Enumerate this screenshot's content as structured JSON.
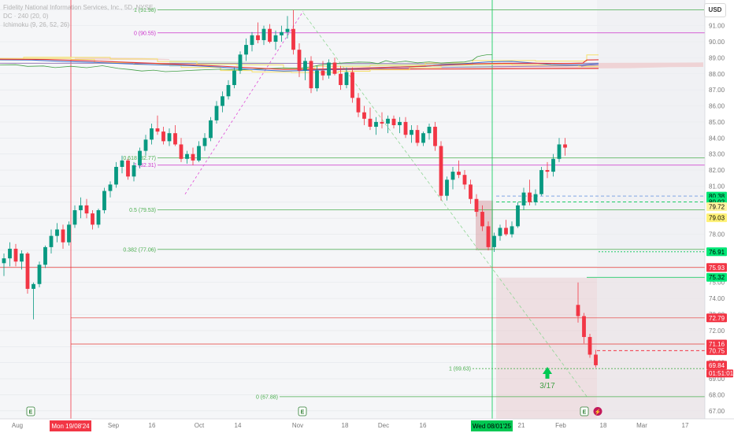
{
  "legend": {
    "symbol": "Fidelity National Information Services, Inc., 5D, NYSE",
    "dc": "DC · 240 (20, 0)",
    "ichimoku": "Ichimoku (9, 26, 52, 26)"
  },
  "currency_button": "USD",
  "colors": {
    "up": "#089981",
    "down": "#f23645",
    "fib_green": "#4caf50",
    "fib_magenta": "#cc33cc",
    "red_line": "#e53935",
    "purple_line": "#9c7fb8",
    "blue_line": "#3d6fd1",
    "yellow_line": "#f5e06b",
    "green_cloud": "#a5d6a7",
    "red_cloud": "#ef9a9a",
    "chikou": "#43a047"
  },
  "chart_data": {
    "type": "candlestick",
    "y_axis": {
      "range": [
        66.5,
        92.6
      ],
      "ticks": [
        "92.00",
        "91.00",
        "90.00",
        "89.00",
        "88.00",
        "87.00",
        "86.00",
        "85.00",
        "84.00",
        "83.00",
        "82.00",
        "81.00",
        "80.00",
        "79.00",
        "78.00",
        "77.00",
        "76.00",
        "75.00",
        "74.00",
        "73.00",
        "72.00",
        "71.00",
        "70.00",
        "69.00",
        "68.00",
        "67.00"
      ]
    },
    "x_axis": {
      "ticks": [
        "Aug",
        "Sep",
        "16",
        "Oct",
        "14",
        "Nov",
        "18",
        "Dec",
        "16",
        "21",
        "Feb",
        "18",
        "Mar",
        "17"
      ],
      "highlighted": [
        "Mon 19/08'24",
        "Wed 08/01'25"
      ]
    },
    "candles": [
      [
        76.2,
        76.8,
        75.4,
        76.5
      ],
      [
        76.5,
        77.5,
        76.0,
        77.1
      ],
      [
        77.1,
        77.4,
        76.0,
        76.3
      ],
      [
        76.3,
        77.0,
        75.8,
        76.8
      ],
      [
        76.8,
        76.9,
        74.3,
        74.6
      ],
      [
        74.6,
        75.0,
        72.7,
        74.9
      ],
      [
        74.9,
        76.3,
        74.7,
        76.1
      ],
      [
        76.1,
        77.3,
        75.9,
        77.2
      ],
      [
        77.2,
        78.3,
        76.8,
        77.9
      ],
      [
        77.9,
        78.7,
        77.5,
        78.3
      ],
      [
        78.3,
        78.6,
        77.1,
        77.5
      ],
      [
        77.5,
        78.8,
        77.3,
        78.6
      ],
      [
        78.6,
        79.8,
        78.4,
        79.5
      ],
      [
        79.5,
        80.3,
        79.0,
        79.8
      ],
      [
        79.8,
        80.2,
        79.0,
        79.3
      ],
      [
        79.3,
        79.5,
        78.3,
        78.6
      ],
      [
        78.6,
        79.6,
        78.4,
        79.5
      ],
      [
        79.5,
        80.9,
        79.3,
        80.7
      ],
      [
        80.7,
        81.3,
        80.3,
        81.1
      ],
      [
        81.1,
        82.5,
        80.9,
        82.2
      ],
      [
        82.2,
        82.9,
        81.8,
        82.6
      ],
      [
        82.6,
        82.7,
        81.4,
        81.6
      ],
      [
        81.6,
        82.5,
        81.3,
        82.3
      ],
      [
        82.3,
        83.4,
        82.1,
        83.2
      ],
      [
        83.2,
        84.2,
        82.9,
        83.9
      ],
      [
        83.9,
        84.9,
        83.6,
        84.6
      ],
      [
        84.6,
        85.4,
        84.2,
        84.4
      ],
      [
        84.4,
        84.7,
        83.6,
        83.8
      ],
      [
        83.8,
        84.6,
        83.5,
        84.3
      ],
      [
        84.3,
        84.8,
        83.5,
        83.6
      ],
      [
        83.6,
        84.0,
        82.5,
        82.7
      ],
      [
        82.7,
        83.2,
        82.4,
        83.0
      ],
      [
        83.0,
        83.4,
        82.3,
        82.6
      ],
      [
        82.6,
        83.8,
        82.5,
        83.5
      ],
      [
        83.5,
        84.3,
        83.2,
        84.0
      ],
      [
        84.0,
        85.3,
        83.8,
        85.1
      ],
      [
        85.1,
        86.3,
        84.9,
        86.0
      ],
      [
        86.0,
        86.9,
        85.6,
        86.6
      ],
      [
        86.6,
        87.6,
        86.4,
        87.3
      ],
      [
        87.3,
        88.4,
        87.1,
        88.2
      ],
      [
        88.2,
        89.4,
        88.0,
        89.2
      ],
      [
        89.2,
        90.2,
        88.8,
        89.8
      ],
      [
        89.8,
        90.6,
        89.4,
        90.4
      ],
      [
        90.4,
        91.2,
        89.9,
        90.1
      ],
      [
        90.1,
        91.0,
        89.8,
        90.8
      ],
      [
        90.8,
        91.1,
        89.9,
        90.0
      ],
      [
        90.0,
        90.7,
        89.5,
        90.4
      ],
      [
        90.4,
        91.0,
        90.0,
        90.6
      ],
      [
        90.6,
        91.6,
        90.2,
        90.8
      ],
      [
        90.8,
        91.98,
        89.2,
        89.5
      ],
      [
        89.5,
        89.9,
        87.8,
        88.2
      ],
      [
        88.2,
        89.0,
        87.6,
        88.8
      ],
      [
        88.8,
        89.1,
        86.8,
        87.1
      ],
      [
        87.1,
        88.5,
        86.9,
        88.2
      ],
      [
        88.2,
        88.8,
        87.6,
        87.9
      ],
      [
        87.9,
        88.9,
        87.7,
        88.7
      ],
      [
        88.7,
        89.0,
        87.9,
        88.0
      ],
      [
        88.0,
        88.5,
        87.0,
        87.3
      ],
      [
        87.3,
        88.4,
        87.1,
        88.1
      ],
      [
        88.1,
        88.4,
        86.2,
        86.5
      ],
      [
        86.5,
        86.8,
        85.3,
        85.6
      ],
      [
        85.6,
        86.0,
        84.8,
        85.2
      ],
      [
        85.2,
        85.9,
        84.5,
        84.7
      ],
      [
        84.7,
        85.3,
        84.2,
        85.0
      ],
      [
        85.0,
        85.6,
        84.6,
        84.9
      ],
      [
        84.9,
        85.4,
        84.3,
        85.2
      ],
      [
        85.2,
        85.4,
        84.6,
        84.8
      ],
      [
        84.8,
        85.3,
        84.3,
        85.0
      ],
      [
        85.0,
        85.3,
        84.0,
        84.2
      ],
      [
        84.2,
        84.8,
        83.7,
        84.5
      ],
      [
        84.5,
        84.8,
        83.5,
        83.7
      ],
      [
        83.7,
        84.4,
        83.5,
        84.3
      ],
      [
        84.3,
        84.9,
        83.9,
        84.7
      ],
      [
        84.7,
        85.0,
        83.2,
        83.5
      ],
      [
        83.5,
        83.8,
        80.1,
        80.4
      ],
      [
        80.4,
        81.6,
        80.1,
        81.4
      ],
      [
        81.4,
        82.2,
        80.8,
        81.9
      ],
      [
        81.9,
        82.6,
        81.5,
        81.7
      ],
      [
        81.7,
        82.0,
        80.8,
        81.1
      ],
      [
        81.1,
        81.4,
        79.9,
        80.2
      ],
      [
        80.2,
        80.5,
        79.1,
        79.4
      ],
      [
        79.4,
        79.8,
        78.2,
        78.5
      ],
      [
        78.5,
        78.8,
        77.0,
        77.2
      ],
      [
        77.2,
        78.1,
        76.9,
        77.9
      ],
      [
        77.9,
        78.6,
        77.6,
        78.4
      ],
      [
        78.4,
        78.9,
        77.9,
        78.0
      ],
      [
        78.0,
        78.8,
        77.8,
        78.5
      ],
      [
        78.5,
        80.0,
        78.4,
        79.8
      ],
      [
        79.8,
        80.9,
        79.5,
        80.6
      ],
      [
        80.6,
        81.4,
        79.8,
        80.0
      ],
      [
        80.0,
        80.8,
        79.8,
        80.5
      ],
      [
        80.5,
        82.2,
        80.4,
        82.0
      ],
      [
        82.0,
        82.5,
        81.5,
        81.9
      ],
      [
        81.9,
        83.0,
        81.6,
        82.7
      ],
      [
        82.7,
        84.0,
        82.5,
        83.6
      ],
      [
        83.6,
        84.0,
        82.9,
        83.4
      ],
      [
        73.6,
        75.0,
        72.5,
        72.9
      ],
      [
        72.9,
        73.1,
        71.2,
        71.6
      ],
      [
        71.6,
        71.8,
        70.3,
        70.5
      ],
      [
        70.5,
        70.8,
        69.7,
        69.84
      ]
    ],
    "fib_levels": [
      {
        "label": "1 (91.98)",
        "value": 91.98
      },
      {
        "label": "0 (90.55)",
        "value": 90.55
      },
      {
        "label": "1 (82.31)",
        "value": 82.31
      },
      {
        "label": "0.618 (82.77)",
        "value": 82.77
      },
      {
        "label": "0.5 (79.53)",
        "value": 79.53
      },
      {
        "label": "0.382 (77.06)",
        "value": 77.06
      },
      {
        "label": "1 (69.63)",
        "value": 69.63
      },
      {
        "label": "0 (67.88)",
        "value": 67.88
      }
    ],
    "price_labels": [
      {
        "text": "80.38",
        "value": 80.38,
        "bg": "#00e676",
        "fg": "#000000"
      },
      {
        "text": "80.02",
        "value": 80.02,
        "bg": "#00e676",
        "fg": "#000000"
      },
      {
        "text": "79.72",
        "value": 79.72,
        "bg": "#fff59d",
        "fg": "#000000"
      },
      {
        "text": "79.03",
        "value": 79.03,
        "bg": "#fff176",
        "fg": "#000000"
      },
      {
        "text": "76.91",
        "value": 76.91,
        "bg": "#00e676",
        "fg": "#000000"
      },
      {
        "text": "75.93",
        "value": 75.93,
        "bg": "#f23645",
        "fg": "#ffffff"
      },
      {
        "text": "75.32",
        "value": 75.32,
        "bg": "#00e676",
        "fg": "#000000"
      },
      {
        "text": "72.79",
        "value": 72.79,
        "bg": "#f23645",
        "fg": "#ffffff"
      },
      {
        "text": "71.16",
        "value": 71.16,
        "bg": "#f23645",
        "fg": "#ffffff"
      },
      {
        "text": "70.75",
        "value": 70.75,
        "bg": "#f23645",
        "fg": "#ffffff"
      },
      {
        "text": "69.84",
        "value": 69.84,
        "bg": "#f23645",
        "fg": "#ffffff"
      }
    ],
    "countdown": "01:51:01",
    "annotations": [
      "3/17"
    ],
    "earnings_markers": [
      "E",
      "E",
      "E"
    ],
    "dividend_marker": "⚡"
  }
}
